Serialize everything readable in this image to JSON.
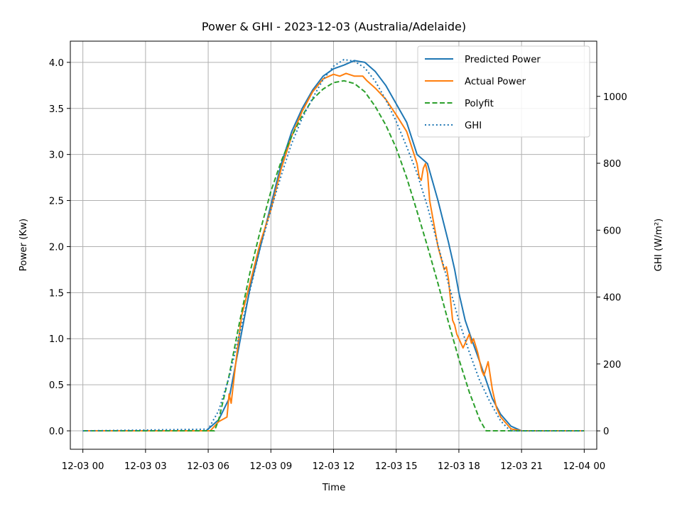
{
  "chart_data": {
    "type": "line",
    "title": "Power & GHI - 2023-12-03 (Australia/Adelaide)",
    "xlabel": "Time",
    "ylabel": "Power (Kw)",
    "y2label": "GHI (W/m²)",
    "xlim": [
      -0.6,
      24.6
    ],
    "ylim": [
      -0.2,
      4.23
    ],
    "y2lim": [
      -55,
      1165
    ],
    "grid": true,
    "legend_position": "upper right",
    "x_ticks": [
      {
        "value": 0,
        "label": "12-03 00"
      },
      {
        "value": 3,
        "label": "12-03 03"
      },
      {
        "value": 6,
        "label": "12-03 06"
      },
      {
        "value": 9,
        "label": "12-03 09"
      },
      {
        "value": 12,
        "label": "12-03 12"
      },
      {
        "value": 15,
        "label": "12-03 15"
      },
      {
        "value": 18,
        "label": "12-03 18"
      },
      {
        "value": 21,
        "label": "12-03 21"
      },
      {
        "value": 24,
        "label": "12-04 00"
      }
    ],
    "y_ticks": [
      {
        "value": 0.0,
        "label": "0.0"
      },
      {
        "value": 0.5,
        "label": "0.5"
      },
      {
        "value": 1.0,
        "label": "1.0"
      },
      {
        "value": 1.5,
        "label": "1.5"
      },
      {
        "value": 2.0,
        "label": "2.0"
      },
      {
        "value": 2.5,
        "label": "2.5"
      },
      {
        "value": 3.0,
        "label": "3.0"
      },
      {
        "value": 3.5,
        "label": "3.5"
      },
      {
        "value": 4.0,
        "label": "4.0"
      }
    ],
    "y2_ticks": [
      {
        "value": 0,
        "label": "0"
      },
      {
        "value": 200,
        "label": "200"
      },
      {
        "value": 400,
        "label": "400"
      },
      {
        "value": 600,
        "label": "600"
      },
      {
        "value": 800,
        "label": "800"
      },
      {
        "value": 1000,
        "label": "1000"
      }
    ],
    "series": [
      {
        "name": "Predicted Power",
        "axis": "left",
        "color": "#1f77b4",
        "style": "solid",
        "x": [
          0,
          5.9,
          6.0,
          6.5,
          7.0,
          7.5,
          8.0,
          8.5,
          9.0,
          9.5,
          10.0,
          10.5,
          11.0,
          11.5,
          12.0,
          12.5,
          13.0,
          13.5,
          14.0,
          14.5,
          15.0,
          15.5,
          16.0,
          16.25,
          16.5,
          17.0,
          17.5,
          17.8,
          18.0,
          18.3,
          18.6,
          19.0,
          19.3,
          19.6,
          20.0,
          20.5,
          21.0,
          24.0
        ],
        "y": [
          0,
          0,
          0.02,
          0.12,
          0.35,
          0.95,
          1.55,
          2.0,
          2.45,
          2.9,
          3.25,
          3.5,
          3.7,
          3.85,
          3.93,
          3.97,
          4.02,
          4.0,
          3.9,
          3.75,
          3.55,
          3.35,
          3.0,
          2.95,
          2.9,
          2.5,
          2.05,
          1.75,
          1.5,
          1.2,
          1.0,
          0.75,
          0.55,
          0.35,
          0.18,
          0.05,
          0,
          0
        ]
      },
      {
        "name": "Actual Power",
        "axis": "left",
        "color": "#ff7f0e",
        "style": "solid",
        "x": [
          0,
          6.1,
          6.5,
          6.9,
          7.0,
          7.1,
          7.3,
          7.6,
          8.0,
          8.5,
          9.0,
          9.5,
          10.0,
          10.5,
          11.0,
          11.5,
          12.0,
          12.3,
          12.6,
          13.0,
          13.2,
          13.4,
          13.6,
          14.0,
          14.5,
          15.0,
          15.5,
          16.0,
          16.1,
          16.2,
          16.3,
          16.4,
          16.5,
          16.6,
          17.0,
          17.3,
          17.4,
          17.5,
          17.7,
          17.8,
          17.9,
          18.0,
          18.2,
          18.3,
          18.5,
          18.6,
          18.7,
          18.9,
          19.0,
          19.1,
          19.2,
          19.4,
          19.6,
          19.8,
          20.0,
          20.5,
          21.0,
          24.0
        ],
        "y": [
          0,
          0,
          0.1,
          0.15,
          0.4,
          0.3,
          0.7,
          1.25,
          1.6,
          2.05,
          2.4,
          2.85,
          3.2,
          3.47,
          3.68,
          3.82,
          3.87,
          3.85,
          3.88,
          3.85,
          3.85,
          3.85,
          3.8,
          3.72,
          3.6,
          3.43,
          3.25,
          2.9,
          2.75,
          2.72,
          2.85,
          2.9,
          2.8,
          2.5,
          2.0,
          1.75,
          1.78,
          1.65,
          1.2,
          1.15,
          1.05,
          1.0,
          0.9,
          0.95,
          1.05,
          0.95,
          1.0,
          0.85,
          0.75,
          0.65,
          0.6,
          0.75,
          0.45,
          0.25,
          0.15,
          0.02,
          0,
          0
        ]
      },
      {
        "name": "Polyfit",
        "axis": "left",
        "color": "#2ca02c",
        "style": "dashed",
        "x": [
          0,
          6.3,
          6.5,
          7.0,
          7.5,
          8.0,
          8.5,
          9.0,
          9.5,
          10.0,
          10.5,
          11.0,
          11.5,
          12.0,
          12.5,
          13.0,
          13.5,
          14.0,
          14.5,
          15.0,
          15.5,
          16.0,
          16.5,
          17.0,
          17.5,
          18.0,
          18.5,
          19.0,
          19.3,
          19.5,
          24.0
        ],
        "y": [
          0,
          0,
          0.12,
          0.6,
          1.18,
          1.72,
          2.18,
          2.6,
          2.93,
          3.2,
          3.42,
          3.6,
          3.71,
          3.78,
          3.8,
          3.77,
          3.68,
          3.52,
          3.32,
          3.07,
          2.75,
          2.38,
          2.0,
          1.6,
          1.18,
          0.78,
          0.42,
          0.12,
          0.0,
          0.0,
          0
        ]
      },
      {
        "name": "GHI",
        "axis": "right",
        "color": "#1f77b4",
        "style": "dotted",
        "x": [
          0,
          6.0,
          6.5,
          7.0,
          7.5,
          8.0,
          8.5,
          9.0,
          9.5,
          10.0,
          10.5,
          11.0,
          11.5,
          12.0,
          12.5,
          13.0,
          13.5,
          14.0,
          14.5,
          15.0,
          15.5,
          16.0,
          16.5,
          17.0,
          17.5,
          18.0,
          18.5,
          19.0,
          19.5,
          20.0,
          20.3,
          20.5,
          24.0
        ],
        "y": [
          0,
          5,
          60,
          160,
          290,
          420,
          550,
          660,
          765,
          860,
          935,
          995,
          1050,
          1090,
          1110,
          1105,
          1085,
          1045,
          990,
          925,
          850,
          770,
          670,
          555,
          440,
          330,
          235,
          150,
          85,
          30,
          10,
          0,
          0
        ]
      }
    ]
  }
}
